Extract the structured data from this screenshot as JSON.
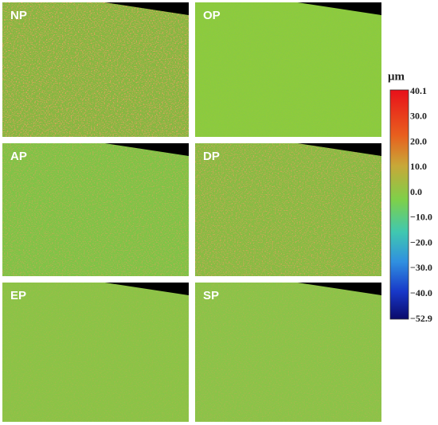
{
  "panels": [
    {
      "label": "NP"
    },
    {
      "label": "OP"
    },
    {
      "label": "AP"
    },
    {
      "label": "DP"
    },
    {
      "label": "EP"
    },
    {
      "label": "SP"
    }
  ],
  "colorbar": {
    "unit": "μm",
    "ticks": [
      "40.1",
      "30.0",
      "20.0",
      "10.0",
      "0.0",
      "−10.0",
      "−20.0",
      "−30.0",
      "−40.0",
      "−52.9"
    ]
  }
}
